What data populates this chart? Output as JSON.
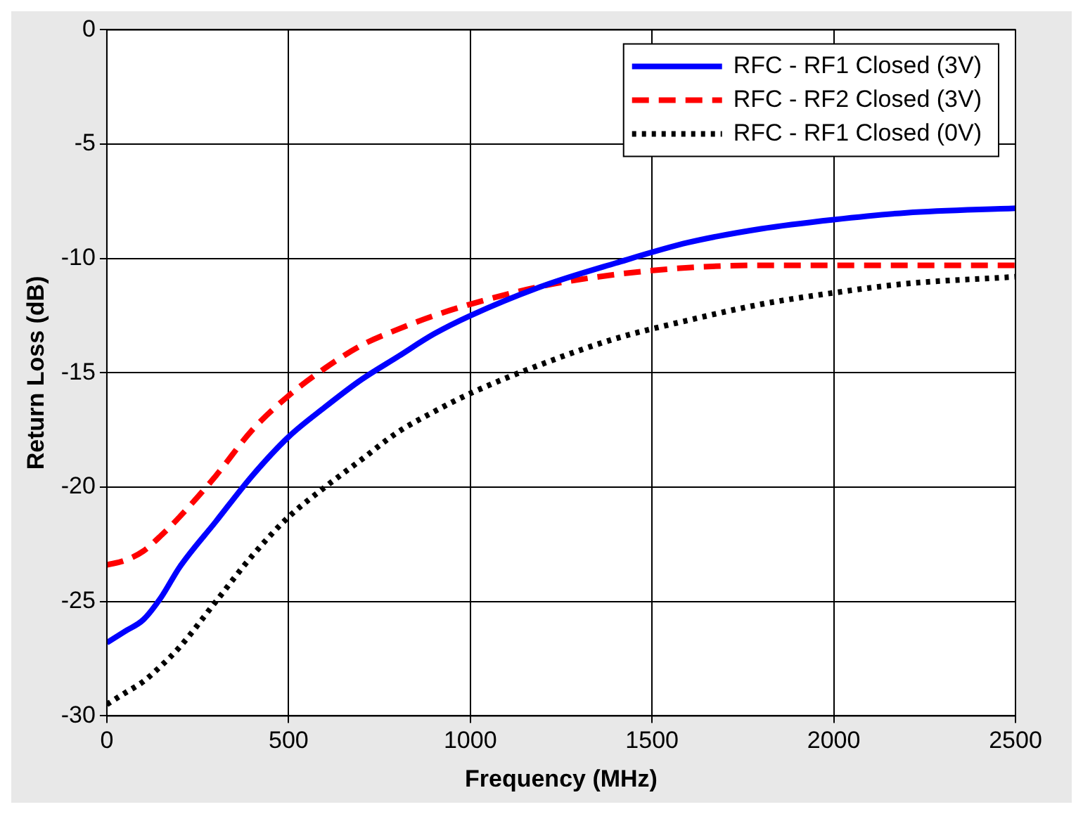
{
  "chart_data": {
    "type": "line",
    "xlabel": "Frequency (MHz)",
    "ylabel": "Return Loss (dB)",
    "xlim": [
      0,
      2500
    ],
    "ylim": [
      -30,
      0
    ],
    "xticks": [
      0,
      500,
      1000,
      1500,
      2000,
      2500
    ],
    "yticks": [
      -30,
      -25,
      -20,
      -15,
      -10,
      -5,
      0
    ],
    "grid": true,
    "legend": "top right",
    "marker": "none",
    "series": [
      {
        "name": "RFC - RF1 Closed (3V)",
        "color": "#0000ff",
        "line_style": "solid",
        "x": [
          0,
          50,
          100,
          150,
          200,
          300,
          400,
          500,
          600,
          700,
          800,
          900,
          1000,
          1200,
          1400,
          1600,
          1800,
          2000,
          2200,
          2500
        ],
        "values": [
          -26.8,
          -26.3,
          -25.8,
          -24.8,
          -23.5,
          -21.5,
          -19.5,
          -17.8,
          -16.5,
          -15.3,
          -14.3,
          -13.3,
          -12.5,
          -11.2,
          -10.2,
          -9.3,
          -8.7,
          -8.3,
          -8.0,
          -7.8
        ]
      },
      {
        "name": "RFC - RF2 Closed (3V)",
        "color": "#ff0000",
        "line_style": "dashed",
        "x": [
          0,
          50,
          100,
          150,
          200,
          300,
          400,
          500,
          600,
          700,
          800,
          900,
          1000,
          1200,
          1400,
          1600,
          1800,
          2000,
          2200,
          2500
        ],
        "values": [
          -23.4,
          -23.2,
          -22.8,
          -22.1,
          -21.3,
          -19.5,
          -17.5,
          -16.0,
          -14.8,
          -13.8,
          -13.1,
          -12.5,
          -12.0,
          -11.2,
          -10.7,
          -10.4,
          -10.3,
          -10.3,
          -10.3,
          -10.3
        ]
      },
      {
        "name": "RFC - RF1 Closed (0V)",
        "color": "#000000",
        "line_style": "dotted",
        "x": [
          0,
          50,
          100,
          150,
          200,
          300,
          400,
          500,
          600,
          700,
          800,
          900,
          1000,
          1200,
          1400,
          1600,
          1800,
          2000,
          2200,
          2500
        ],
        "values": [
          -29.5,
          -29.0,
          -28.5,
          -27.8,
          -27.0,
          -25.0,
          -23.0,
          -21.3,
          -20.0,
          -18.8,
          -17.6,
          -16.7,
          -15.9,
          -14.6,
          -13.5,
          -12.7,
          -12.0,
          -11.5,
          -11.1,
          -10.8
        ]
      }
    ]
  }
}
